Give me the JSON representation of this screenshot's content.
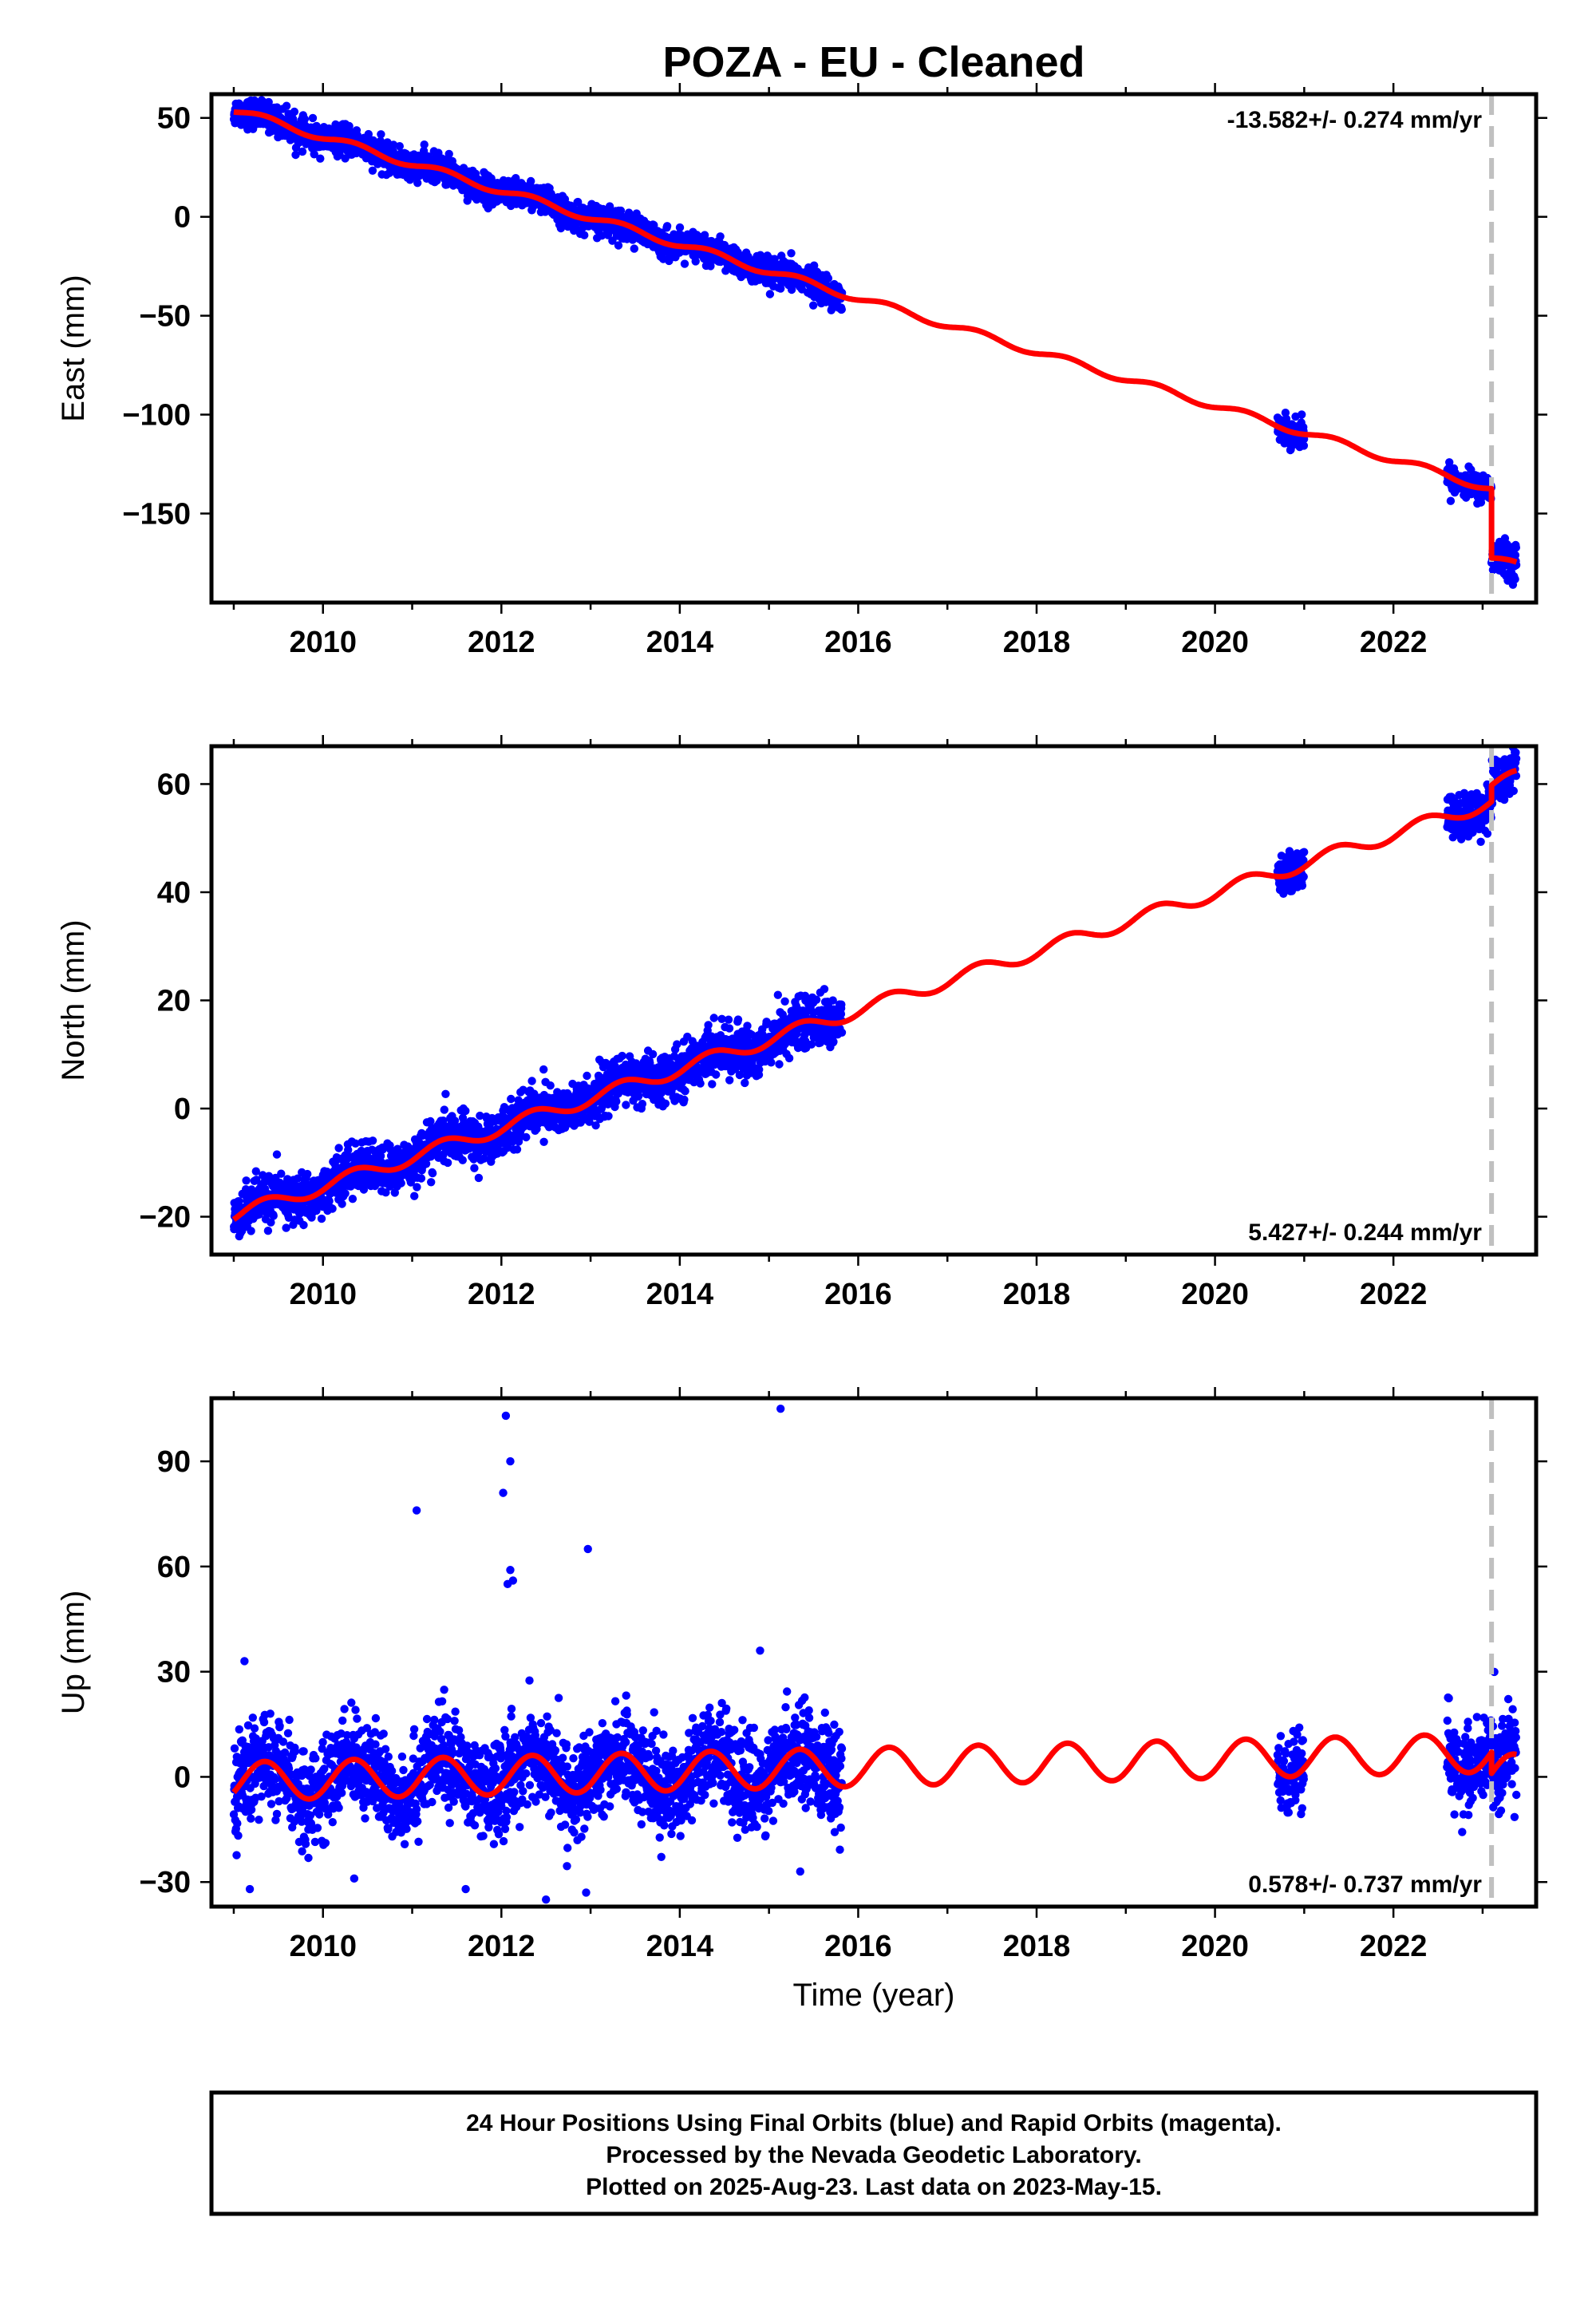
{
  "title": "POZA  - EU - Cleaned",
  "footer": [
    "24 Hour Positions Using Final Orbits (blue) and Rapid Orbits (magenta).",
    "Processed by the Nevada Geodetic Laboratory.",
    "Plotted on 2025-Aug-23. Last data on 2023-May-15."
  ],
  "colors": {
    "points": "#0000ff",
    "fit": "#ff0000",
    "equipment_line": "#c0c0c0"
  },
  "chart_data": [
    {
      "type": "scatter",
      "ylabel": "East (mm)",
      "xlabel": "",
      "xlim": [
        2008.75,
        2023.6
      ],
      "ylim": [
        -195,
        62
      ],
      "xticks": [
        2010,
        2012,
        2014,
        2016,
        2018,
        2020,
        2022
      ],
      "yticks": [
        50,
        0,
        -50,
        -100,
        -150
      ],
      "ytick_labels": [
        "50",
        "0",
        "−50",
        "−100",
        "−150"
      ],
      "rate_label": "-13.582+/- 0.274 mm/yr",
      "rate_position": "top-right",
      "equipment_change": 2023.1,
      "rate": -13.582,
      "fit_intercept_2009": 54,
      "seasonal_amplitude": 1.8,
      "offset_at_equipment_change": -35,
      "segments": [
        {
          "x": [
            2009.0,
            2015.82
          ],
          "scatter": 3.5
        },
        {
          "x": [
            2020.7,
            2021.0
          ],
          "scatter": 3.5
        },
        {
          "x": [
            2022.6,
            2023.1
          ],
          "scatter": 3.5
        },
        {
          "x": [
            2023.1,
            2023.38
          ],
          "scatter": 4
        }
      ],
      "outliers": []
    },
    {
      "type": "scatter",
      "ylabel": "North (mm)",
      "xlabel": "",
      "xlim": [
        2008.75,
        2023.6
      ],
      "ylim": [
        -27,
        67
      ],
      "xticks": [
        2010,
        2012,
        2014,
        2016,
        2018,
        2020,
        2022
      ],
      "yticks": [
        60,
        40,
        20,
        0,
        -20
      ],
      "ytick_labels": [
        "60",
        "40",
        "20",
        "0",
        "−20"
      ],
      "rate_label": "5.427+/- 0.244 mm/yr",
      "rate_position": "bottom-right",
      "equipment_change": 2023.1,
      "rate": 5.427,
      "fit_intercept_2009": -19.8,
      "seasonal_amplitude": 1.3,
      "offset_at_equipment_change": 3,
      "segments": [
        {
          "x": [
            2009.0,
            2015.82
          ],
          "scatter": 2.2
        },
        {
          "x": [
            2020.7,
            2021.0
          ],
          "scatter": 2.0
        },
        {
          "x": [
            2022.6,
            2023.1
          ],
          "scatter": 2.0
        },
        {
          "x": [
            2023.1,
            2023.38
          ],
          "scatter": 2.2
        }
      ],
      "outliers": [
        [
          2023.35,
          65
        ],
        [
          2015.1,
          21
        ]
      ]
    },
    {
      "type": "scatter",
      "ylabel": "Up (mm)",
      "xlabel": "Time (year)",
      "xlim": [
        2008.75,
        2023.6
      ],
      "ylim": [
        -37,
        108
      ],
      "xticks": [
        2010,
        2012,
        2014,
        2016,
        2018,
        2020,
        2022
      ],
      "yticks": [
        90,
        60,
        30,
        0,
        -30
      ],
      "ytick_labels": [
        "90",
        "60",
        "30",
        "0",
        "−30"
      ],
      "rate_label": "0.578+/- 0.737 mm/yr",
      "rate_position": "bottom-right",
      "equipment_change": 2023.1,
      "rate": 0.578,
      "fit_intercept_2009": -1.3,
      "seasonal_amplitude": 5.5,
      "offset_at_equipment_change": -6,
      "segments": [
        {
          "x": [
            2009.0,
            2015.82
          ],
          "scatter": 6.5
        },
        {
          "x": [
            2020.7,
            2021.0
          ],
          "scatter": 5.5
        },
        {
          "x": [
            2022.6,
            2023.1
          ],
          "scatter": 6
        },
        {
          "x": [
            2023.1,
            2023.38
          ],
          "scatter": 6.5
        }
      ],
      "outliers": [
        [
          2011.05,
          76
        ],
        [
          2012.05,
          103
        ],
        [
          2012.1,
          90
        ],
        [
          2012.02,
          81
        ],
        [
          2012.1,
          59
        ],
        [
          2012.13,
          56
        ],
        [
          2012.07,
          55
        ],
        [
          2012.97,
          65
        ],
        [
          2015.13,
          105
        ],
        [
          2014.9,
          36
        ],
        [
          2009.12,
          33
        ],
        [
          2012.5,
          -35
        ],
        [
          2012.95,
          -33
        ],
        [
          2009.18,
          -32
        ],
        [
          2011.6,
          -32
        ],
        [
          2015.35,
          -27
        ],
        [
          2010.35,
          -29
        ]
      ]
    }
  ]
}
